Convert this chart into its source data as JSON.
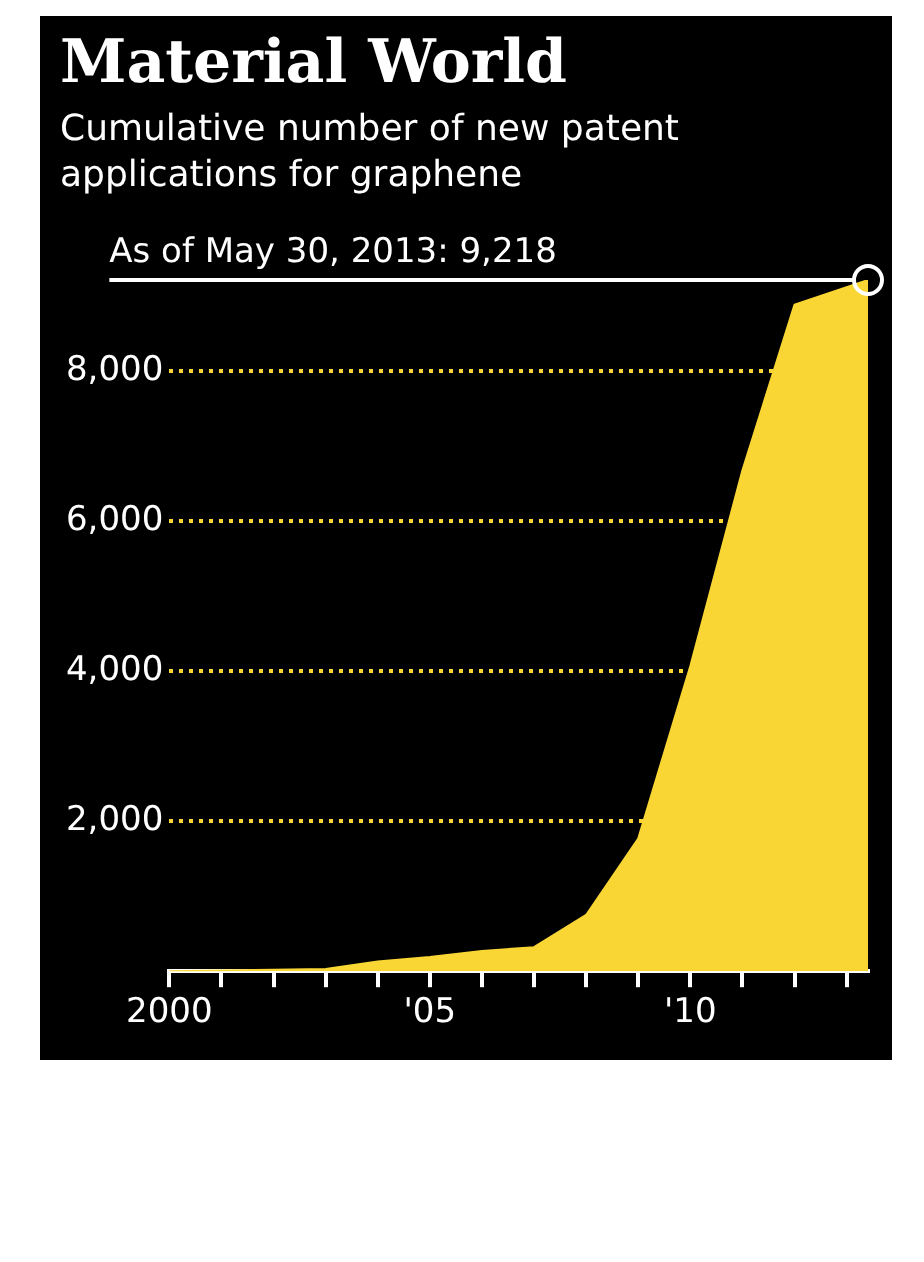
{
  "chart_data": {
    "type": "area",
    "title": "Material World",
    "subtitle": "Cumulative number of new patent applications for graphene",
    "x": [
      2000,
      2001,
      2002,
      2003,
      2004,
      2005,
      2006,
      2007,
      2008,
      2009,
      2010,
      2011,
      2012,
      2013.41
    ],
    "series": [
      {
        "color": "#f9d634",
        "values": [
          0,
          10,
          20,
          30,
          130,
          190,
          270,
          320,
          750,
          1770,
          4070,
          6680,
          8890,
          9218
        ]
      }
    ],
    "xlim": [
      2000,
      2013.41
    ],
    "xticks": [
      {
        "value": 2000,
        "label": "2000"
      },
      {
        "value": 2001,
        "label": null
      },
      {
        "value": 2002,
        "label": null
      },
      {
        "value": 2003,
        "label": null
      },
      {
        "value": 2004,
        "label": null
      },
      {
        "value": 2005,
        "label": "'05"
      },
      {
        "value": 2006,
        "label": null
      },
      {
        "value": 2007,
        "label": null
      },
      {
        "value": 2008,
        "label": null
      },
      {
        "value": 2009,
        "label": null
      },
      {
        "value": 2010,
        "label": "'10"
      },
      {
        "value": 2011,
        "label": null
      },
      {
        "value": 2012,
        "label": null
      },
      {
        "value": 2013,
        "label": null
      }
    ],
    "ylim": [
      0,
      9218
    ],
    "yticks": [
      {
        "value": 2000,
        "label": "2,000"
      },
      {
        "value": 4000,
        "label": "4,000"
      },
      {
        "value": 6000,
        "label": "6,000"
      },
      {
        "value": 8000,
        "label": "8,000"
      }
    ],
    "grid": "y",
    "legend": false,
    "ref_lines": [
      {
        "axis": "y",
        "value": 9218,
        "label": "As of May 30, 2013: 9,218",
        "color": "#ffffff"
      }
    ]
  }
}
